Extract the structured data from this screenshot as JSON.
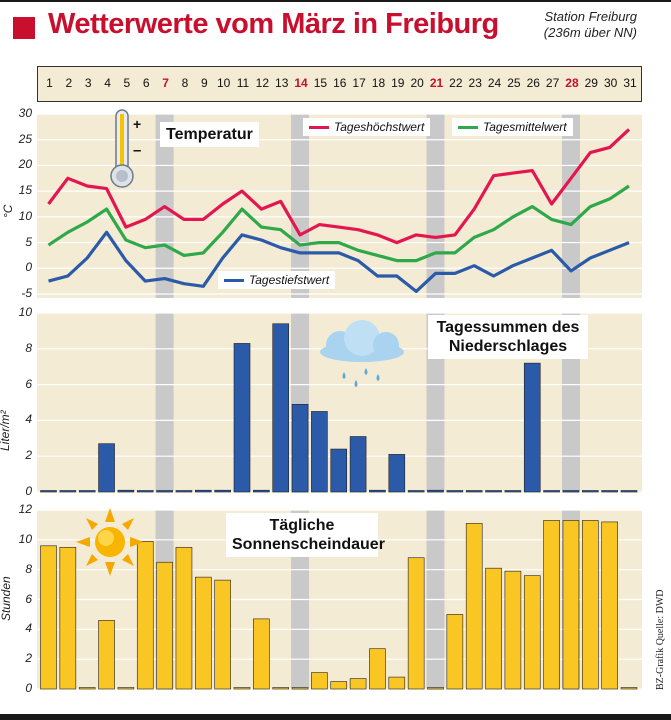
{
  "header": {
    "title": "Wetterwerte vom März in Freiburg",
    "station_line1": "Station Freiburg",
    "station_line2": "(236m über NN)",
    "accent_color": "#c8102e"
  },
  "days": [
    "1",
    "2",
    "3",
    "4",
    "5",
    "6",
    "7",
    "8",
    "9",
    "10",
    "11",
    "12",
    "13",
    "14",
    "15",
    "16",
    "17",
    "18",
    "19",
    "20",
    "21",
    "22",
    "23",
    "24",
    "25",
    "26",
    "27",
    "28",
    "29",
    "30",
    "31"
  ],
  "sundays": [
    7,
    14,
    21,
    28
  ],
  "credit": "BZ-Grafik Quelle: DWD",
  "chart_data": [
    {
      "type": "line",
      "title": "Temperatur",
      "ylabel": "°C",
      "ylim": [
        -5,
        30
      ],
      "yticks": [
        "30",
        "25",
        "20",
        "15",
        "10",
        "5",
        "0",
        "-5"
      ],
      "x": [
        1,
        2,
        3,
        4,
        5,
        6,
        7,
        8,
        9,
        10,
        11,
        12,
        13,
        14,
        15,
        16,
        17,
        18,
        19,
        20,
        21,
        22,
        23,
        24,
        25,
        26,
        27,
        28,
        29,
        30,
        31
      ],
      "series": [
        {
          "name": "Tageshöchstwert",
          "color": "#e3174f",
          "values": [
            12.5,
            17.5,
            16,
            15.5,
            8,
            9.5,
            12,
            9.5,
            9.5,
            12.5,
            15,
            11.5,
            13,
            6.5,
            8.5,
            8,
            7.5,
            6.5,
            5,
            6.5,
            6,
            6.5,
            11.5,
            18,
            18.5,
            19,
            12.5,
            17.5,
            22.5,
            23.5,
            27
          ]
        },
        {
          "name": "Tagesmittelwert",
          "color": "#2fa84a",
          "values": [
            4.5,
            7,
            9,
            11.5,
            5.5,
            4,
            4.5,
            2.5,
            3,
            7,
            11.5,
            8,
            7.5,
            4.5,
            5,
            5,
            3.5,
            2.5,
            1.5,
            1.5,
            3,
            3,
            6,
            7.5,
            10,
            12,
            9.5,
            8.5,
            12,
            13.5,
            16
          ]
        },
        {
          "name": "Tagestiefstwert",
          "color": "#2a5aa8",
          "values": [
            -2.5,
            -1.5,
            2,
            7,
            1.5,
            -2.5,
            -2,
            -3,
            -3.5,
            2,
            6.5,
            5.5,
            4,
            3,
            3,
            3,
            1.5,
            -1.5,
            -1.5,
            -4.5,
            -1,
            -1,
            0.5,
            -1.5,
            0.5,
            2,
            3.5,
            -0.5,
            2,
            3.5,
            5
          ]
        }
      ],
      "legend": [
        "Tageshöchstwert",
        "Tagesmittelwert",
        "Tagestiefstwert"
      ]
    },
    {
      "type": "bar",
      "title": "Tagessummen des Niederschlages",
      "ylabel": "Liter/m²",
      "ylim": [
        0,
        10
      ],
      "yticks": [
        "10",
        "8",
        "6",
        "4",
        "2",
        "0"
      ],
      "color": "#2a5aa8",
      "values": [
        0,
        0,
        0,
        2.7,
        0.1,
        0,
        0,
        0,
        0.1,
        0.1,
        8.3,
        0.1,
        9.4,
        4.9,
        4.5,
        2.4,
        3.1,
        0.1,
        2.1,
        0,
        0.1,
        0,
        0,
        0,
        0,
        7.2,
        0,
        0,
        0,
        0,
        0
      ]
    },
    {
      "type": "bar",
      "title": "Tägliche Sonnenscheindauer",
      "ylabel": "Stunden",
      "ylim": [
        0,
        12
      ],
      "yticks": [
        "12",
        "10",
        "8",
        "6",
        "4",
        "2",
        "0"
      ],
      "color": "#f9c623",
      "values": [
        9.6,
        9.5,
        0,
        4.6,
        0,
        9.9,
        8.5,
        9.5,
        7.5,
        7.3,
        0,
        4.7,
        0,
        0.1,
        1.1,
        0.5,
        0.7,
        2.7,
        0.8,
        8.8,
        0,
        5,
        11.1,
        8.1,
        7.9,
        7.6,
        11.3,
        11.3,
        11.3,
        11.2,
        0
      ]
    }
  ]
}
